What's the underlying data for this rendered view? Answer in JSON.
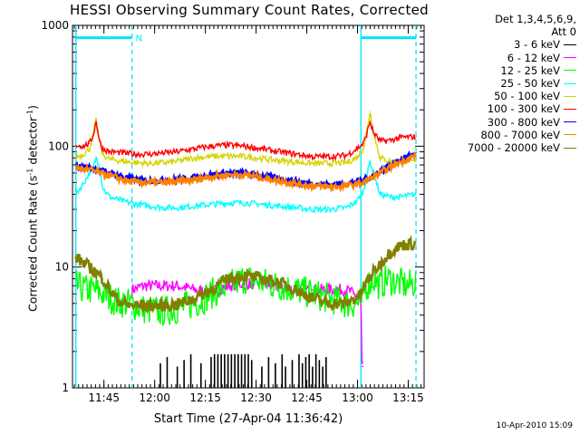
{
  "chart_data": {
    "type": "line",
    "title": "HESSI Observing Summary Count Rates, Corrected",
    "xlabel": "Start Time (27-Apr-04 11:36:42)",
    "ylabel_main": "Corrected Count Rate (s",
    "ylabel_exp1": "-1",
    "ylabel_mid": " detector",
    "ylabel_exp2": "-1",
    "ylabel_end": ")",
    "y_scale": "log",
    "ylim": [
      1,
      1000
    ],
    "xlim_minutes": [
      -1,
      103
    ],
    "x_ticks": [
      {
        "label": "11:45",
        "min": 8.3
      },
      {
        "label": "12:00",
        "min": 23.3
      },
      {
        "label": "12:15",
        "min": 38.3
      },
      {
        "label": "12:30",
        "min": 53.3
      },
      {
        "label": "12:45",
        "min": 68.3
      },
      {
        "label": "13:00",
        "min": 83.3
      },
      {
        "label": "13:15",
        "min": 98.3
      }
    ],
    "y_ticks": [
      {
        "label": "1",
        "value": 1
      },
      {
        "label": "10",
        "value": 10
      },
      {
        "label": "100",
        "value": 100
      },
      {
        "label": "1000",
        "value": 1000
      }
    ],
    "legend_header_1": "Det 1,3,4,5,6,9,",
    "legend_header_2": "Att 0",
    "legend_placement": "right",
    "marker_label": "N",
    "vertical_markers": [
      {
        "min": 0.0,
        "style": "solid"
      },
      {
        "min": 16.6,
        "style": "dashed"
      },
      {
        "min": 84.3,
        "style": "solid"
      },
      {
        "min": 100.6,
        "style": "dashed"
      }
    ],
    "night_bars": [
      {
        "start": 0.0,
        "end": 16.6,
        "value": 790
      },
      {
        "start": 84.3,
        "end": 100.6,
        "value": 790
      }
    ],
    "series": [
      {
        "name": "3 - 6 keV",
        "color": "#000000",
        "x": [
          25,
          27,
          30,
          32,
          34,
          37,
          40,
          41,
          42,
          43,
          44,
          45,
          46,
          47,
          48,
          49,
          50,
          51,
          52,
          55,
          57,
          59,
          61,
          62,
          64,
          66,
          67,
          68,
          69,
          70,
          71,
          72,
          73,
          74
        ],
        "y": [
          1.6,
          1.8,
          1.5,
          1.7,
          1.9,
          1.6,
          1.8,
          1.9,
          1.9,
          1.9,
          1.9,
          1.9,
          1.9,
          1.9,
          1.9,
          1.9,
          1.9,
          1.9,
          1.7,
          1.5,
          1.8,
          1.6,
          1.9,
          1.5,
          1.7,
          1.9,
          1.6,
          1.8,
          1.9,
          1.5,
          1.9,
          1.7,
          1.5,
          1.8
        ]
      },
      {
        "name": "6 - 12 keV",
        "color": "#ff00ff",
        "x": [
          16.6,
          20,
          25,
          30,
          35,
          40,
          45,
          50,
          55,
          60,
          65,
          70,
          75,
          80,
          82,
          84.3,
          84.6,
          85
        ],
        "y": [
          6.5,
          7.0,
          7.0,
          7.0,
          6.5,
          6.2,
          7.0,
          7.3,
          7.3,
          6.8,
          6.5,
          6.5,
          6.5,
          6.5,
          6.0,
          5.5,
          1.5,
          1.5
        ]
      },
      {
        "name": "12 - 25 keV",
        "color": "#00ff00",
        "x": [
          0,
          3,
          5,
          8,
          12,
          16,
          20,
          25,
          30,
          35,
          38,
          40,
          45,
          50,
          55,
          60,
          65,
          70,
          75,
          80,
          83,
          84.3,
          86,
          88,
          90,
          92,
          95,
          98,
          100.6
        ],
        "y": [
          7.0,
          6.5,
          6.5,
          6.0,
          5.2,
          5.0,
          4.5,
          4.3,
          4.5,
          5.0,
          5.5,
          6.0,
          7.0,
          8.0,
          7.5,
          7.0,
          6.5,
          6.0,
          5.5,
          5.0,
          5.0,
          5.0,
          7.0,
          8.0,
          7.0,
          8.0,
          7.5,
          7.0,
          7.5
        ]
      },
      {
        "name": "25 - 50 keV",
        "color": "#00ffff",
        "x": [
          0,
          2,
          4,
          5,
          6,
          7,
          8,
          10,
          14,
          18,
          22,
          26,
          30,
          35,
          40,
          45,
          50,
          55,
          60,
          65,
          70,
          75,
          80,
          83,
          85,
          86,
          87,
          88,
          90,
          93,
          96,
          100.6
        ],
        "y": [
          40,
          48,
          60,
          65,
          80,
          70,
          45,
          38,
          35,
          33,
          32,
          31,
          31,
          32,
          33,
          34,
          34,
          33,
          32,
          31,
          30,
          30,
          31,
          35,
          42,
          55,
          75,
          60,
          40,
          38,
          38,
          40
        ]
      },
      {
        "name": "50 - 100 keV",
        "color": "#d4d400",
        "x": [
          0,
          2,
          4,
          5,
          6,
          7,
          8,
          10,
          14,
          18,
          22,
          26,
          30,
          35,
          40,
          45,
          50,
          55,
          60,
          65,
          70,
          75,
          80,
          83,
          85,
          86,
          87,
          88,
          90,
          93,
          96,
          100.6
        ],
        "y": [
          82,
          85,
          95,
          120,
          165,
          110,
          85,
          78,
          75,
          73,
          72,
          73,
          75,
          80,
          82,
          83,
          82,
          79,
          76,
          74,
          72,
          72,
          73,
          80,
          95,
          130,
          195,
          130,
          80,
          75,
          75,
          75
        ]
      },
      {
        "name": "100 - 300 keV",
        "color": "#ff0000",
        "x": [
          0,
          2,
          4,
          5,
          6,
          7,
          8,
          10,
          14,
          18,
          22,
          26,
          30,
          35,
          40,
          45,
          50,
          55,
          60,
          65,
          70,
          75,
          80,
          83,
          85,
          86,
          87,
          88,
          90,
          93,
          96,
          100.6
        ],
        "y": [
          102,
          100,
          105,
          120,
          160,
          110,
          95,
          90,
          88,
          86,
          86,
          88,
          90,
          95,
          100,
          102,
          100,
          95,
          90,
          86,
          82,
          82,
          84,
          95,
          105,
          125,
          160,
          130,
          110,
          112,
          118,
          120
        ]
      },
      {
        "name": "300 - 800 keV",
        "color": "#0000ff",
        "x": [
          0,
          5,
          8,
          12,
          16,
          20,
          25,
          30,
          35,
          40,
          45,
          50,
          55,
          60,
          65,
          70,
          75,
          80,
          85,
          90,
          95,
          100.6
        ],
        "y": [
          68,
          66,
          62,
          58,
          54,
          52,
          52,
          53,
          55,
          58,
          60,
          60,
          57,
          54,
          51,
          49,
          48,
          49,
          52,
          62,
          75,
          88
        ]
      },
      {
        "name": "800 - 7000 keV",
        "color": "#ff8000",
        "x": [
          0,
          5,
          8,
          12,
          16,
          20,
          25,
          30,
          35,
          40,
          45,
          50,
          55,
          60,
          65,
          70,
          75,
          80,
          85,
          90,
          95,
          100.6
        ],
        "y": [
          66,
          63,
          59,
          55,
          51,
          50,
          50,
          51,
          53,
          56,
          58,
          58,
          55,
          52,
          49,
          47,
          46,
          47,
          50,
          60,
          72,
          84
        ]
      },
      {
        "name": "7000 - 20000 keV",
        "color": "#808000",
        "x": [
          0,
          2,
          4,
          6,
          8,
          10,
          12,
          14,
          16,
          18,
          20,
          25,
          30,
          35,
          40,
          45,
          50,
          55,
          60,
          65,
          70,
          75,
          80,
          84,
          86,
          88,
          90,
          92,
          94,
          96,
          98,
          100.6
        ],
        "y": [
          12,
          11,
          10,
          9,
          8,
          6.5,
          5.5,
          5.0,
          4.8,
          4.8,
          4.8,
          4.8,
          4.9,
          5.5,
          6.5,
          8.0,
          8.5,
          8.0,
          7.5,
          6.5,
          5.5,
          5.0,
          5.0,
          5.8,
          7.5,
          9.0,
          10.5,
          12.5,
          14.0,
          15.0,
          15.5,
          15.5
        ]
      }
    ],
    "timestamp": "10-Apr-2010 15:09"
  }
}
